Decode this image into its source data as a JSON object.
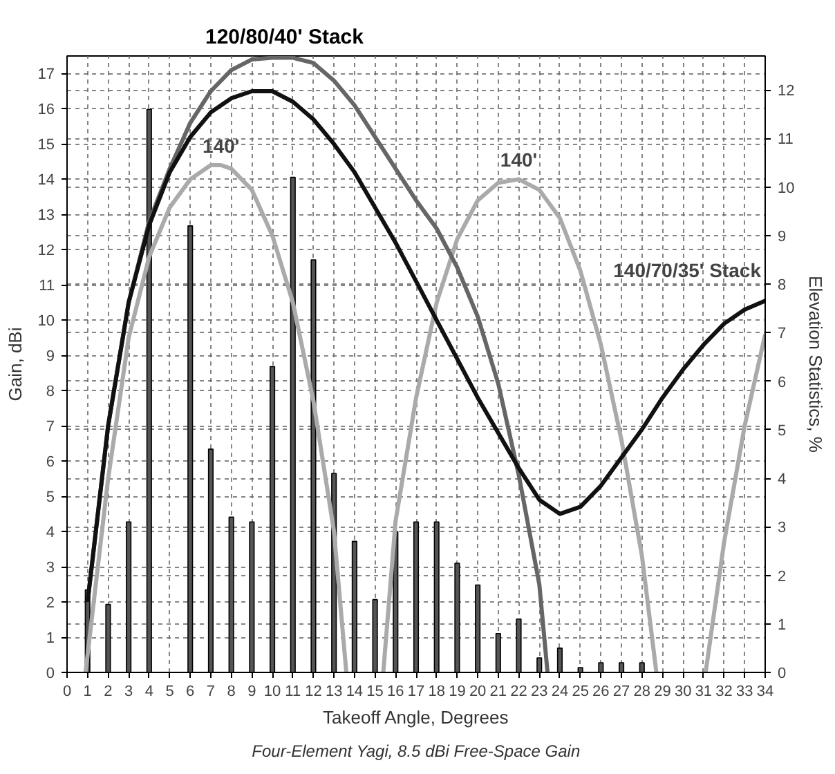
{
  "chart_data": {
    "type": "line",
    "xlabel": "Takeoff Angle, Degrees",
    "ylabel": "Gain, dBi",
    "y2label": "Elevation Statistics, %",
    "xlim": [
      0,
      34
    ],
    "xticks": [
      0,
      1,
      2,
      3,
      4,
      5,
      6,
      7,
      8,
      9,
      10,
      11,
      12,
      13,
      14,
      15,
      16,
      17,
      18,
      19,
      20,
      21,
      22,
      23,
      24,
      25,
      26,
      27,
      28,
      29,
      30,
      31,
      32,
      33,
      34
    ],
    "ylim": [
      0,
      17.5
    ],
    "yticks": [
      0,
      1,
      2,
      3,
      4,
      5,
      6,
      7,
      8,
      9,
      10,
      11,
      12,
      13,
      14,
      15,
      16,
      17
    ],
    "y2lim": [
      0,
      12.7
    ],
    "y2ticks": [
      0,
      1,
      2,
      3,
      4,
      5,
      6,
      7,
      8,
      9,
      10,
      11,
      12
    ],
    "grid": true,
    "marker": "none",
    "line_style": "solid",
    "series": [
      {
        "type": "bar",
        "axis": "y2",
        "color": "#555555",
        "x": [
          1,
          2,
          3,
          4,
          5,
          6,
          7,
          8,
          9,
          10,
          11,
          12,
          13,
          14,
          15,
          16,
          17,
          18,
          19,
          20,
          21,
          22,
          23,
          24,
          25,
          26,
          27,
          28
        ],
        "values": [
          1.7,
          1.4,
          3.1,
          11.6,
          null,
          9.2,
          4.6,
          3.2,
          3.1,
          6.3,
          10.2,
          8.5,
          4.1,
          2.7,
          1.5,
          2.9,
          3.1,
          3.1,
          2.25,
          1.8,
          0.8,
          1.1,
          0.3,
          0.5,
          0.1,
          0.2,
          0.2,
          0.2
        ]
      },
      {
        "color": "#aaaaaa",
        "x": [
          0.9,
          2,
          3,
          4,
          5,
          6,
          7,
          7.5,
          8,
          9,
          10,
          11,
          12,
          13,
          13.6,
          14.5,
          15.4,
          16,
          17,
          18,
          19,
          20,
          21,
          22,
          23,
          24,
          25,
          26,
          27,
          28,
          28.7,
          30,
          31.1,
          32,
          33,
          34
        ],
        "values": [
          0,
          5.5,
          9.5,
          11.8,
          13.2,
          14,
          14.4,
          14.4,
          14.3,
          13.7,
          12.4,
          10.5,
          7.7,
          4,
          0,
          null,
          0,
          4.3,
          7.8,
          10.5,
          12.3,
          13.4,
          13.9,
          14,
          13.7,
          12.9,
          11.4,
          9.3,
          6.6,
          3.3,
          0,
          null,
          0,
          3.7,
          7,
          9.6
        ]
      },
      {
        "color": "#666666",
        "x": [
          1,
          2,
          3,
          4,
          5,
          6,
          7,
          8,
          9,
          10,
          10.5,
          11,
          12,
          13,
          14,
          15,
          16,
          17,
          18,
          19,
          20,
          21,
          22,
          23,
          23.4
        ],
        "values": [
          2,
          7,
          10.5,
          12.8,
          14.3,
          15.6,
          16.5,
          17.1,
          17.4,
          17.45,
          17.45,
          17.45,
          17.3,
          16.8,
          16.1,
          15.2,
          14.3,
          13.4,
          12.6,
          11.5,
          10.1,
          8.2,
          5.6,
          2.5,
          0
        ]
      },
      {
        "color": "#111111",
        "x": [
          1,
          2,
          3,
          4,
          5,
          6,
          7,
          8,
          9,
          10,
          11,
          12,
          13,
          14,
          15,
          16,
          17,
          18,
          19,
          20,
          21,
          22,
          23,
          24,
          25,
          26,
          27,
          28,
          29,
          30,
          31,
          32,
          33,
          34
        ],
        "values": [
          2,
          7,
          10.5,
          12.7,
          14.2,
          15.2,
          15.9,
          16.3,
          16.5,
          16.5,
          16.2,
          15.7,
          15,
          14.2,
          13.2,
          12.2,
          11.1,
          10,
          8.9,
          7.8,
          6.8,
          5.8,
          4.9,
          4.5,
          4.7,
          5.3,
          6.1,
          6.9,
          7.8,
          8.6,
          9.3,
          9.9,
          10.3,
          10.55
        ]
      }
    ],
    "annotations": [
      "120/80/40' Stack",
      {
        "text": "140'",
        "x": 7.5,
        "y": 14.4
      },
      {
        "text": "140'",
        "x": 22,
        "y": 14
      },
      "140/70/35' Stack",
      "Four-Element Yagi, 8.5 dBi Free-Space Gain"
    ]
  }
}
